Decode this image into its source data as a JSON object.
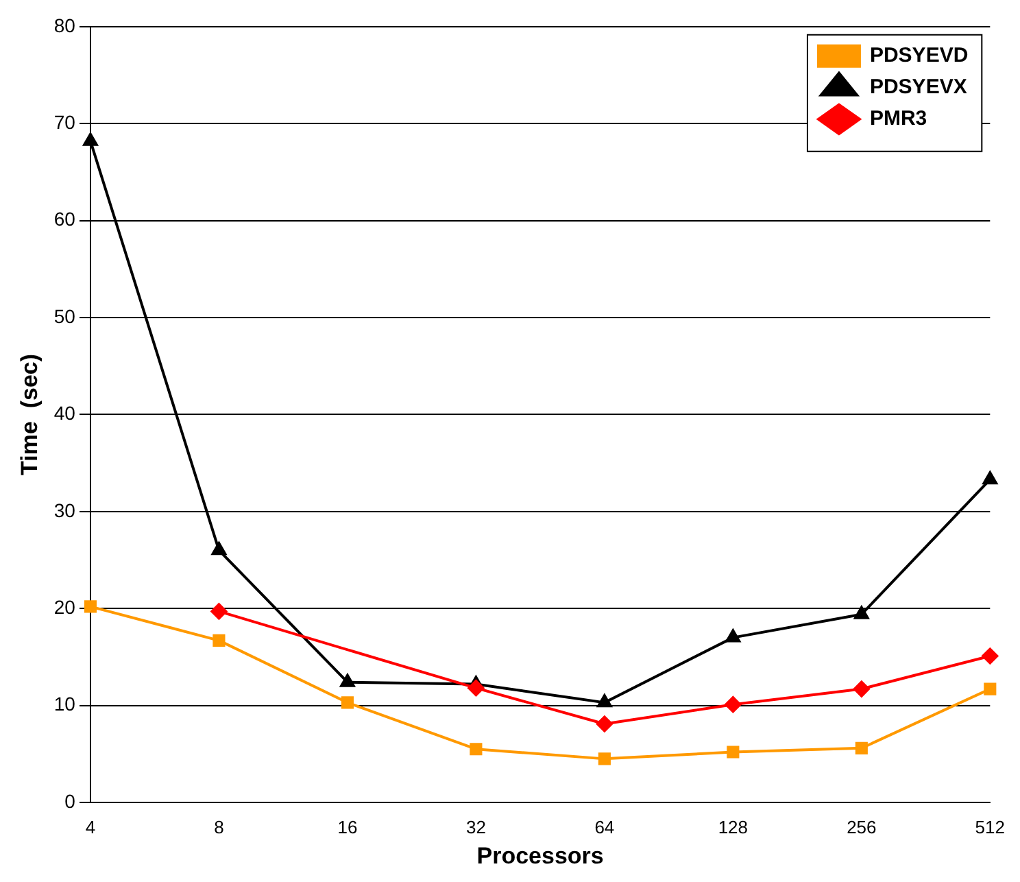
{
  "chart_data": {
    "type": "line",
    "xlabel": "Processors",
    "ylabel": "Time  (sec)",
    "categories": [
      "4",
      "8",
      "16",
      "32",
      "64",
      "128",
      "256",
      "512"
    ],
    "ylim": [
      0,
      80
    ],
    "yticks": [
      0,
      10,
      20,
      30,
      40,
      50,
      60,
      70,
      80
    ],
    "grid": "y",
    "legend": "top right",
    "series": [
      {
        "name": "PDSYEVD",
        "color": "#ff9900",
        "marker": "square",
        "values": [
          20.2,
          16.7,
          10.3,
          5.5,
          4.5,
          5.2,
          5.6,
          11.7
        ]
      },
      {
        "name": "PDSYEVX",
        "color": "#000000",
        "marker": "triangle",
        "values": [
          68.2,
          26.0,
          12.4,
          12.2,
          10.3,
          17.0,
          19.4,
          33.3
        ]
      },
      {
        "name": "PMR3",
        "color": "#ff0000",
        "marker": "diamond",
        "values": [
          null,
          19.7,
          null,
          11.8,
          8.1,
          10.1,
          11.7,
          15.1
        ]
      }
    ]
  }
}
